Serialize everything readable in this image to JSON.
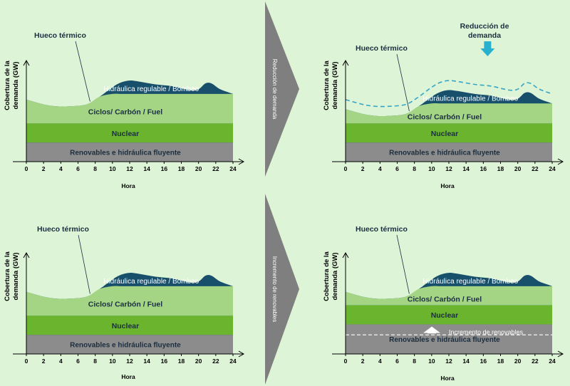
{
  "colors": {
    "background": "#ddf4d6",
    "renewables": "#8c8c8c",
    "nuclear": "#6ab42e",
    "cycles": "#a4d585",
    "hydro": "#184f6b",
    "thermal_gap": "#dff2dc",
    "dashed": "#37a6c6",
    "arrow_cyan": "#2ab0cf",
    "connector": "#7f7f7f",
    "text_dark": "#1b2e40",
    "text_white": "#ffffff"
  },
  "labels": {
    "ylabel": "Cobertura de la demanda (GW)",
    "xlabel": "Hora",
    "gap": "Hueco térmico",
    "hydro": "Hidráulica regulable / Bombeo",
    "cycles": "Ciclos/ Carbón / Fuel",
    "nuclear": "Nuclear",
    "renewables": "Renovables e hidráulica fluyente",
    "reduction": "Reducción de demanda",
    "renewable_increase": "Incremento de renovables",
    "connector_top": "Reducción de demanda",
    "connector_bottom": "Incremento de renovables"
  },
  "chart_data": [
    {
      "type": "area",
      "panel": "top-left",
      "x_ticks": [
        0,
        2,
        4,
        6,
        8,
        10,
        12,
        14,
        16,
        18,
        20,
        22,
        24
      ],
      "xlim": [
        0,
        24
      ],
      "xlabel": "Hora",
      "ylabel": "Cobertura de la demanda (GW)",
      "bands": [
        "Renovables e hidráulica fluyente",
        "Nuclear",
        "Ciclos/ Carbón / Fuel",
        "Hidráulica regulable / Bombeo"
      ],
      "band_levels": {
        "renewables": 2,
        "nuclear": 4,
        "cycles": 7.1
      },
      "demand": {
        "x": [
          0,
          2,
          3.5,
          5,
          7,
          8.5,
          10,
          11,
          12,
          13,
          15,
          17,
          19,
          20,
          20.8,
          21.5,
          22.5,
          24
        ],
        "y": [
          6.5,
          6.0,
          5.8,
          5.8,
          6.0,
          6.8,
          7.8,
          8.3,
          8.5,
          8.4,
          8.1,
          7.9,
          7.5,
          7.6,
          8.2,
          8.2,
          7.6,
          7.1
        ]
      }
    },
    {
      "type": "area",
      "panel": "top-right",
      "x_ticks": [
        0,
        2,
        4,
        6,
        8,
        10,
        12,
        14,
        16,
        18,
        20,
        22,
        24
      ],
      "xlim": [
        0,
        24
      ],
      "xlabel": "Hora",
      "ylabel": "Cobertura de la demanda (GW)",
      "band_levels": {
        "renewables": 2,
        "nuclear": 4,
        "cycles": 6.1
      },
      "demand": {
        "x": [
          0,
          2,
          3.5,
          5,
          7,
          8.5,
          10,
          11,
          12,
          13,
          15,
          17,
          19,
          20,
          20.8,
          21.5,
          22.5,
          24
        ],
        "y": [
          5.5,
          5.0,
          4.8,
          4.8,
          5.0,
          5.8,
          6.8,
          7.3,
          7.5,
          7.4,
          7.1,
          6.9,
          6.5,
          6.6,
          7.2,
          7.2,
          6.6,
          6.1
        ]
      },
      "original_demand": {
        "x": [
          0,
          2,
          3.5,
          5,
          7,
          8.5,
          10,
          11,
          12,
          13,
          15,
          17,
          19,
          20,
          20.8,
          21.5,
          22.5,
          24
        ],
        "y": [
          6.5,
          6.0,
          5.8,
          5.8,
          6.0,
          6.8,
          7.8,
          8.3,
          8.5,
          8.4,
          8.1,
          7.9,
          7.5,
          7.6,
          8.2,
          8.2,
          7.6,
          7.1
        ]
      }
    },
    {
      "type": "area",
      "panel": "bottom-left",
      "x_ticks": [
        0,
        2,
        4,
        6,
        8,
        10,
        12,
        14,
        16,
        18,
        20,
        22,
        24
      ],
      "xlim": [
        0,
        24
      ],
      "xlabel": "Hora",
      "ylabel": "Cobertura de la demanda (GW)",
      "band_levels": {
        "renewables": 2,
        "nuclear": 4,
        "cycles": 7.1
      },
      "demand": {
        "x": [
          0,
          2,
          3.5,
          5,
          7,
          8.5,
          10,
          11,
          12,
          13,
          15,
          17,
          19,
          20,
          20.8,
          21.5,
          22.5,
          24
        ],
        "y": [
          6.5,
          6.0,
          5.8,
          5.8,
          6.0,
          6.8,
          7.8,
          8.3,
          8.5,
          8.4,
          8.1,
          7.9,
          7.5,
          7.6,
          8.2,
          8.2,
          7.6,
          7.1
        ]
      }
    },
    {
      "type": "area",
      "panel": "bottom-right",
      "x_ticks": [
        0,
        2,
        4,
        6,
        8,
        10,
        12,
        14,
        16,
        18,
        20,
        22,
        24
      ],
      "xlim": [
        0,
        24
      ],
      "xlabel": "Hora",
      "ylabel": "Cobertura de la demanda (GW)",
      "band_levels": {
        "renewables": 3.1,
        "nuclear": 5.1,
        "cycles": 7.1
      },
      "renewables_original_level": 2,
      "demand": {
        "x": [
          0,
          2,
          3.5,
          5,
          7,
          8.5,
          10,
          11,
          12,
          13,
          15,
          17,
          19,
          20,
          20.8,
          21.5,
          22.5,
          24
        ],
        "y": [
          6.5,
          6.0,
          5.8,
          5.8,
          6.0,
          6.8,
          7.8,
          8.3,
          8.5,
          8.4,
          8.1,
          7.9,
          7.5,
          7.6,
          8.2,
          8.2,
          7.6,
          7.1
        ]
      }
    }
  ]
}
